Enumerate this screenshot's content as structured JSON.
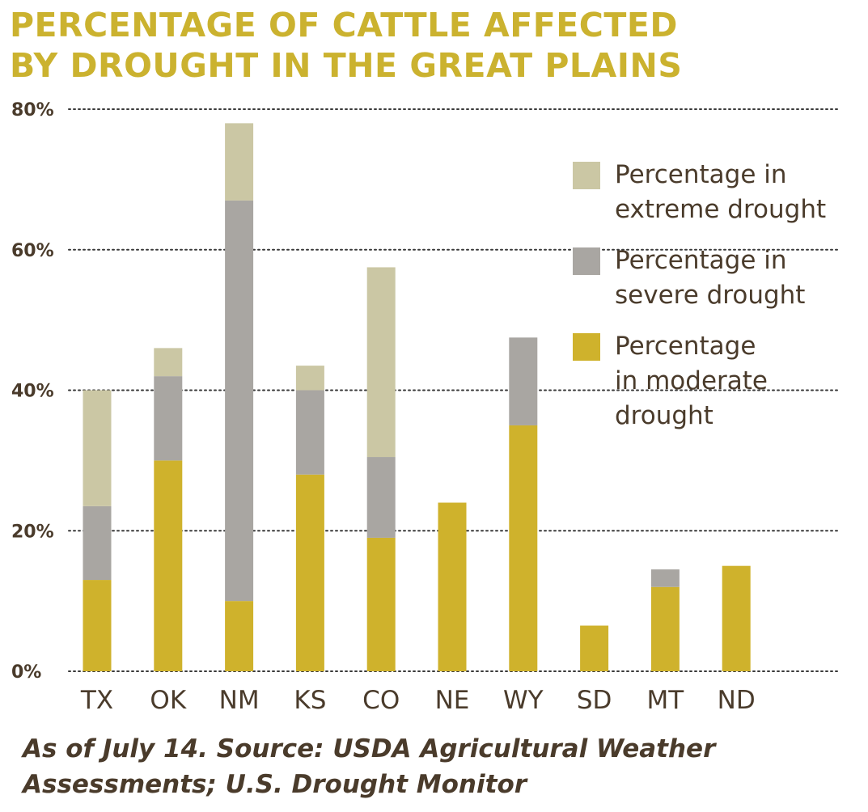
{
  "title": {
    "line1": "PERCENTAGE OF CATTLE AFFECTED",
    "line2": "BY DROUGHT IN THE GREAT PLAINS"
  },
  "source_note": "As of July 14. Source: USDA Agricultural Weather\nAssessments; U.S. Drought Monitor",
  "colors": {
    "title": "#cbb22f",
    "moderate": "#cfb22c",
    "severe": "#a9a6a2",
    "extreme": "#cbc7a4",
    "text": "#4a3b2b",
    "grid": "#3a3a3a"
  },
  "legend": [
    {
      "series": "extreme",
      "label": "Percentage in\nextreme drought"
    },
    {
      "series": "severe",
      "label": "Percentage in\nsevere drought"
    },
    {
      "series": "moderate",
      "label": "Percentage\nin moderate\ndrought"
    }
  ],
  "chart_data": {
    "type": "bar",
    "stacked": true,
    "categories": [
      "TX",
      "OK",
      "NM",
      "KS",
      "CO",
      "NE",
      "WY",
      "SD",
      "MT",
      "ND"
    ],
    "series": [
      {
        "key": "moderate",
        "name": "Percentage in moderate drought",
        "values": [
          13,
          30,
          10,
          28,
          19,
          24,
          35,
          6.5,
          12,
          15
        ]
      },
      {
        "key": "severe",
        "name": "Percentage in severe drought",
        "values": [
          10.5,
          12,
          57,
          12,
          11.5,
          0,
          12.5,
          0,
          2.5,
          0
        ]
      },
      {
        "key": "extreme",
        "name": "Percentage in extreme drought",
        "values": [
          16.5,
          4,
          11,
          3.5,
          27,
          0,
          0,
          0,
          0,
          0
        ]
      }
    ],
    "yticks": [
      "0%",
      "20%",
      "40%",
      "60%",
      "80%"
    ],
    "ytick_values": [
      0,
      20,
      40,
      60,
      80
    ],
    "ylim": [
      0,
      80
    ],
    "grid": "dotted horizontal",
    "legend_position": "right",
    "xlabel": "",
    "ylabel": ""
  }
}
